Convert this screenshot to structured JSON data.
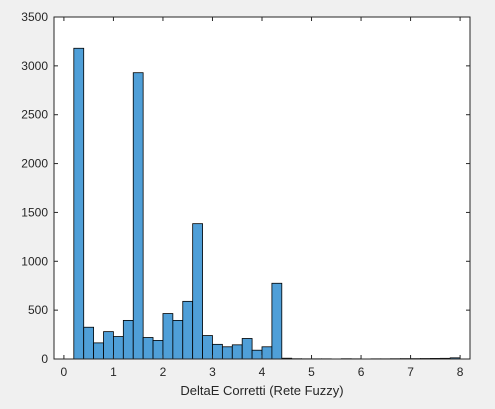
{
  "chart_data": {
    "type": "bar",
    "title": "",
    "xlabel": "DeltaE Corretti (Rete Fuzzy)",
    "ylabel": "",
    "xlim": [
      -0.2,
      8.2
    ],
    "ylim": [
      0,
      3500
    ],
    "xticks": [
      0,
      1,
      2,
      3,
      4,
      5,
      6,
      7,
      8
    ],
    "yticks": [
      0,
      500,
      1000,
      1500,
      2000,
      2500,
      3000,
      3500
    ],
    "grid": false,
    "bin_width": 0.2,
    "bins": [
      {
        "x0": 0.2,
        "count": 3180
      },
      {
        "x0": 0.4,
        "count": 325
      },
      {
        "x0": 0.6,
        "count": 165
      },
      {
        "x0": 0.8,
        "count": 280
      },
      {
        "x0": 1.0,
        "count": 230
      },
      {
        "x0": 1.2,
        "count": 395
      },
      {
        "x0": 1.4,
        "count": 2930
      },
      {
        "x0": 1.6,
        "count": 220
      },
      {
        "x0": 1.8,
        "count": 190
      },
      {
        "x0": 2.0,
        "count": 465
      },
      {
        "x0": 2.2,
        "count": 395
      },
      {
        "x0": 2.4,
        "count": 590
      },
      {
        "x0": 2.6,
        "count": 1385
      },
      {
        "x0": 2.8,
        "count": 240
      },
      {
        "x0": 3.0,
        "count": 150
      },
      {
        "x0": 3.2,
        "count": 125
      },
      {
        "x0": 3.4,
        "count": 145
      },
      {
        "x0": 3.6,
        "count": 210
      },
      {
        "x0": 3.8,
        "count": 90
      },
      {
        "x0": 4.0,
        "count": 125
      },
      {
        "x0": 4.2,
        "count": 775
      },
      {
        "x0": 4.4,
        "count": 8
      },
      {
        "x0": 4.6,
        "count": 3
      },
      {
        "x0": 4.8,
        "count": 2
      },
      {
        "x0": 5.0,
        "count": 2
      },
      {
        "x0": 5.2,
        "count": 2
      },
      {
        "x0": 5.4,
        "count": 1
      },
      {
        "x0": 5.6,
        "count": 3
      },
      {
        "x0": 5.8,
        "count": 2
      },
      {
        "x0": 6.0,
        "count": 1
      },
      {
        "x0": 6.2,
        "count": 2
      },
      {
        "x0": 6.4,
        "count": 2
      },
      {
        "x0": 6.6,
        "count": 3
      },
      {
        "x0": 6.8,
        "count": 4
      },
      {
        "x0": 7.0,
        "count": 4
      },
      {
        "x0": 7.2,
        "count": 5
      },
      {
        "x0": 7.4,
        "count": 6
      },
      {
        "x0": 7.6,
        "count": 7
      },
      {
        "x0": 7.8,
        "count": 12
      }
    ],
    "colors": {
      "bar_fill": "#4f9fd8",
      "bar_edge": "#000000",
      "axes_background": "#ffffff",
      "figure_background": "#f0f0f0",
      "axis_color": "#262626"
    }
  }
}
